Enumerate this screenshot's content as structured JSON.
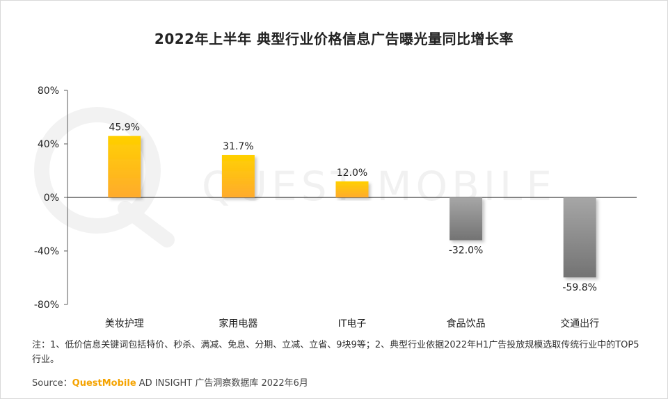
{
  "title": "2022年上半年 典型行业价格信息广告曝光量同比增长率",
  "watermark": "QUEST MOBILE",
  "chart_data": {
    "type": "bar",
    "categories": [
      "美妆护理",
      "家用电器",
      "IT电子",
      "食品饮品",
      "交通出行"
    ],
    "values": [
      45.9,
      31.7,
      12.0,
      -32.0,
      -59.8
    ],
    "value_labels": [
      "45.9%",
      "31.7%",
      "12.0%",
      "-32.0%",
      "-59.8%"
    ],
    "ylim": [
      -80,
      80
    ],
    "yticks": [
      80,
      40,
      0,
      -40,
      -80
    ],
    "ytick_labels": [
      "80%",
      "40%",
      "0%",
      "-40%",
      "-80%"
    ],
    "xlabel": "",
    "ylabel": "",
    "grid": false,
    "colors": {
      "positive": "#ffc000",
      "negative": "#8c8c8c"
    }
  },
  "note": "注：1、低价信息关键词包括特价、秒杀、满减、免息、分期、立减、立省、9块9等；2、典型行业依据2022年H1广告投放规模选取传统行业中的TOP5行业。",
  "source": {
    "label": "Source：",
    "brand": "QuestMobile",
    "text": " AD INSIGHT 广告洞察数据库 2022年6月"
  }
}
